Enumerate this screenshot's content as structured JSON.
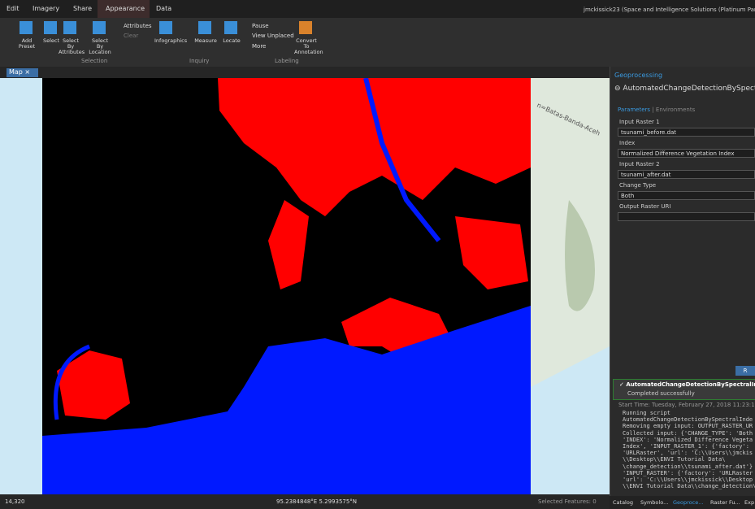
{
  "ribbon": {
    "tabs": [
      "Edit",
      "Imagery",
      "Share",
      "Appearance",
      "Data"
    ],
    "user": "jmckissick23 (Space and Intelligence Solutions (Platinum Partn",
    "buttons": [
      "Add Preset",
      "Select",
      "Select By Attributes",
      "Select By Location",
      "Attributes",
      "Clear",
      "Infographics",
      "Measure",
      "Locate",
      "Pause",
      "View Unplaced",
      "More",
      "Convert To Annotation"
    ],
    "groups": [
      "Selection",
      "Inquiry",
      "Labeling"
    ]
  },
  "map": {
    "tab": "Map",
    "road_label": "n=Batas-Banda-Aceh"
  },
  "status": {
    "scale": "14,320",
    "coords": "95.2384848°E 5.2993575°N",
    "selected": "Selected Features: 0"
  },
  "geoprocessing": {
    "header": "Geoprocessing",
    "tool": "AutomatedChangeDetectionBySpectra",
    "tabs": [
      "Parameters",
      "Environments"
    ],
    "params": [
      {
        "label": "Input Raster 1",
        "value": "tsunami_before.dat"
      },
      {
        "label": "Index",
        "value": "Normalized Difference Vegetation Index"
      },
      {
        "label": "Input Raster 2",
        "value": "tsunami_after.dat"
      },
      {
        "label": "Change Type",
        "value": "Both"
      },
      {
        "label": "Output Raster URI"
      }
    ],
    "run": "R",
    "message": {
      "title": "AutomatedChangeDetectionBySpectralIndex",
      "status": "Completed successfully",
      "start": "Start Time: Tuesday, February 27, 2018 11:23:16 AM",
      "log": [
        "Running script",
        "AutomatedChangeDetectionBySpectralInde",
        "Removing empty input: OUTPUT_RASTER_UR",
        "Collected input: {'CHANGE_TYPE': 'Both",
        "'INDEX': 'Normalized Difference Vegeta",
        "Index', 'INPUT_RASTER_1': {'factory':",
        "'URLRaster', 'url': 'C:\\\\Users\\\\jmckis",
        "\\\\Desktop\\\\ENVI Tutorial Data\\",
        "\\change_detection\\\\tsunami_after.dat'}",
        "'INPUT_RASTER': {'factory': 'URLRaster",
        "'url': 'C:\\\\Users\\\\jmckissick\\\\Desktop",
        "\\\\ENVI Tutorial Data\\\\change_detection\\"
      ]
    }
  },
  "bottom_tabs": [
    "Catalog",
    "Symbolo...",
    "Geoproce...",
    "Raster Fu...",
    "Exp"
  ]
}
